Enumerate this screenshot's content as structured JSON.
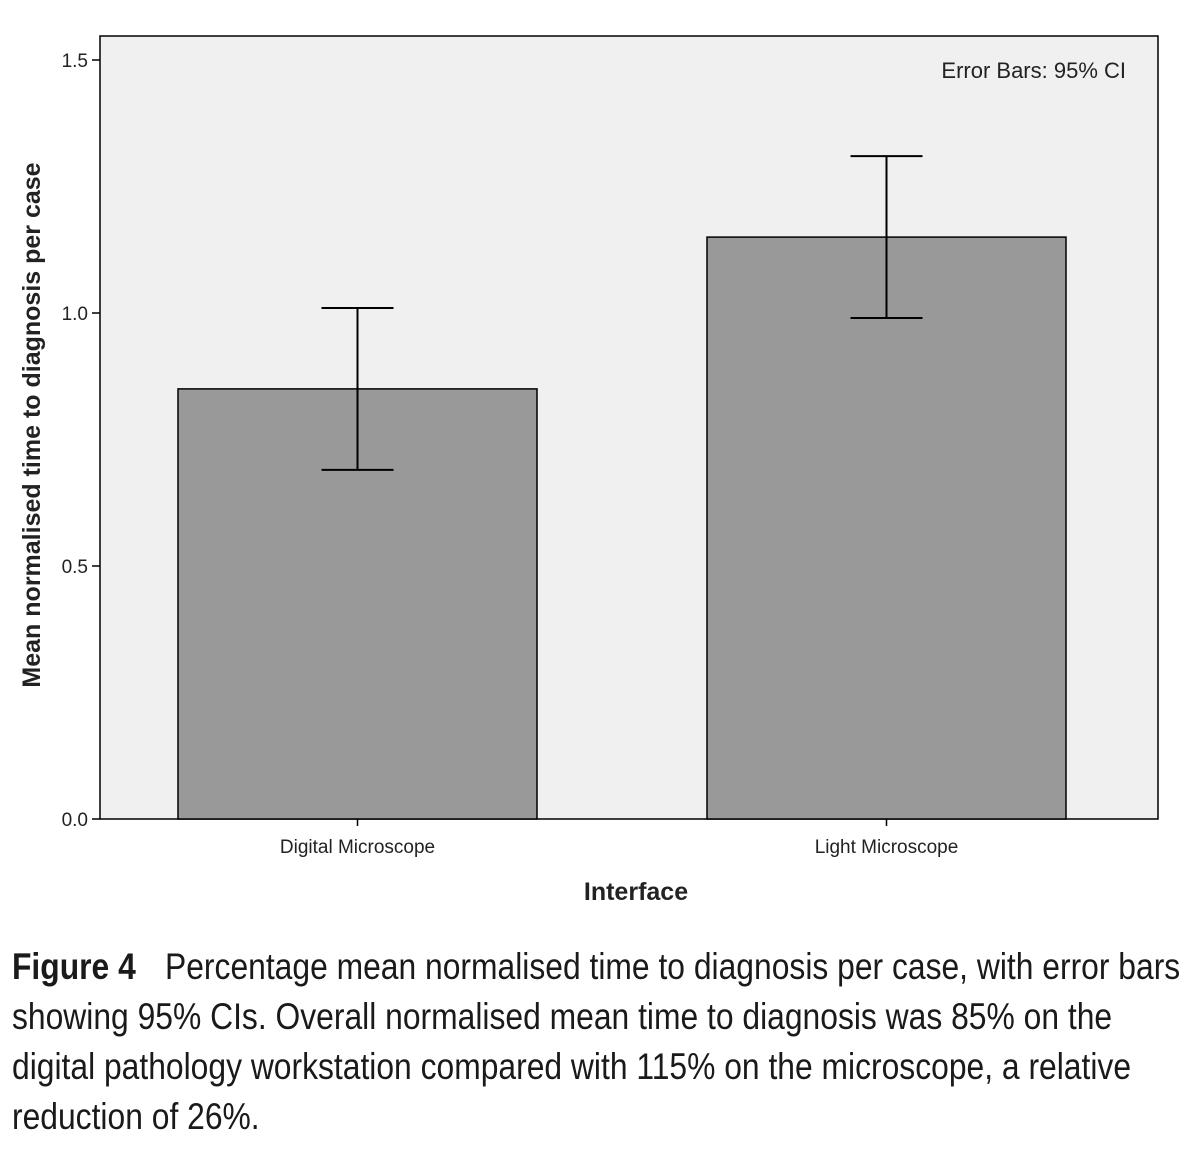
{
  "chart_data": {
    "type": "bar",
    "categories": [
      "Digital Microscope",
      "Light Microscope"
    ],
    "values": [
      0.85,
      1.15
    ],
    "error_bars": {
      "lower": [
        0.69,
        0.99
      ],
      "upper": [
        1.01,
        1.31
      ]
    },
    "xlabel": "Interface",
    "ylabel": "Mean normalised time to diagnosis per case",
    "ylim": [
      0,
      1.5
    ],
    "yticks": [
      "0.0",
      "0.5",
      "1.0",
      "1.5"
    ],
    "annotation": "Error Bars: 95% CI",
    "grid": false,
    "colors": {
      "bar": "#999999",
      "plot_bg": "#f0f0f0",
      "axis": "#000000"
    }
  },
  "caption": {
    "label": "Figure 4",
    "text": "Percentage mean normalised time to diagnosis per case, with error bars showing 95% CIs. Overall normalised mean time to diagnosis was 85% on the digital pathology workstation compared with 115% on the microscope, a relative reduction of 26%."
  }
}
